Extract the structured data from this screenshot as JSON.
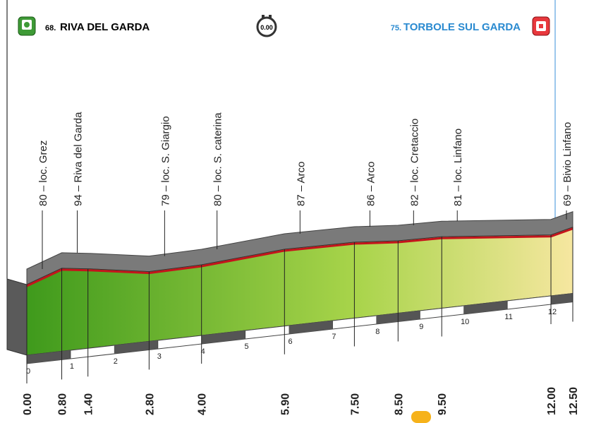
{
  "chart_data": {
    "type": "profile",
    "start_label": "68.",
    "start_name": "RIVA DEL GARDA",
    "finish_label": "75.",
    "finish_name": "TORBOLE SUL GARDA",
    "timer": "0.00",
    "km": [
      {
        "value": 0,
        "label": "0.00"
      },
      {
        "value": 0.8,
        "label": "0.80"
      },
      {
        "value": 1.4,
        "label": "1.40"
      },
      {
        "value": 2.8,
        "label": "2.80"
      },
      {
        "value": 4,
        "label": "4.00"
      },
      {
        "value": 5.9,
        "label": "5.90"
      },
      {
        "value": 7.5,
        "label": "7.50"
      },
      {
        "value": 8.5,
        "label": "8.50"
      },
      {
        "value": 9.5,
        "label": "9.50"
      },
      {
        "value": 12,
        "label": "12.00"
      },
      {
        "value": 12.5,
        "label": "12.50"
      }
    ],
    "altitudes": [
      80,
      94,
      90,
      79,
      80,
      87,
      86,
      82,
      81,
      69,
      75
    ],
    "value_labels": [
      "80 – loc. Grez",
      "94 – Riva del Garda",
      null,
      "79 – loc. S. Giargio",
      "80 – loc. S. caterina",
      "87 – Arco",
      "86 – Arco",
      "82 – loc. Cretaccio",
      "81 – loc. Linfano",
      "69 – Bivio Linfano",
      null
    ],
    "xlim": [
      0,
      12.5
    ],
    "xticks": [
      0,
      1,
      2,
      3,
      4,
      5,
      6,
      7,
      8,
      9,
      10,
      11,
      12
    ],
    "ylim": [
      0,
      120
    ]
  }
}
